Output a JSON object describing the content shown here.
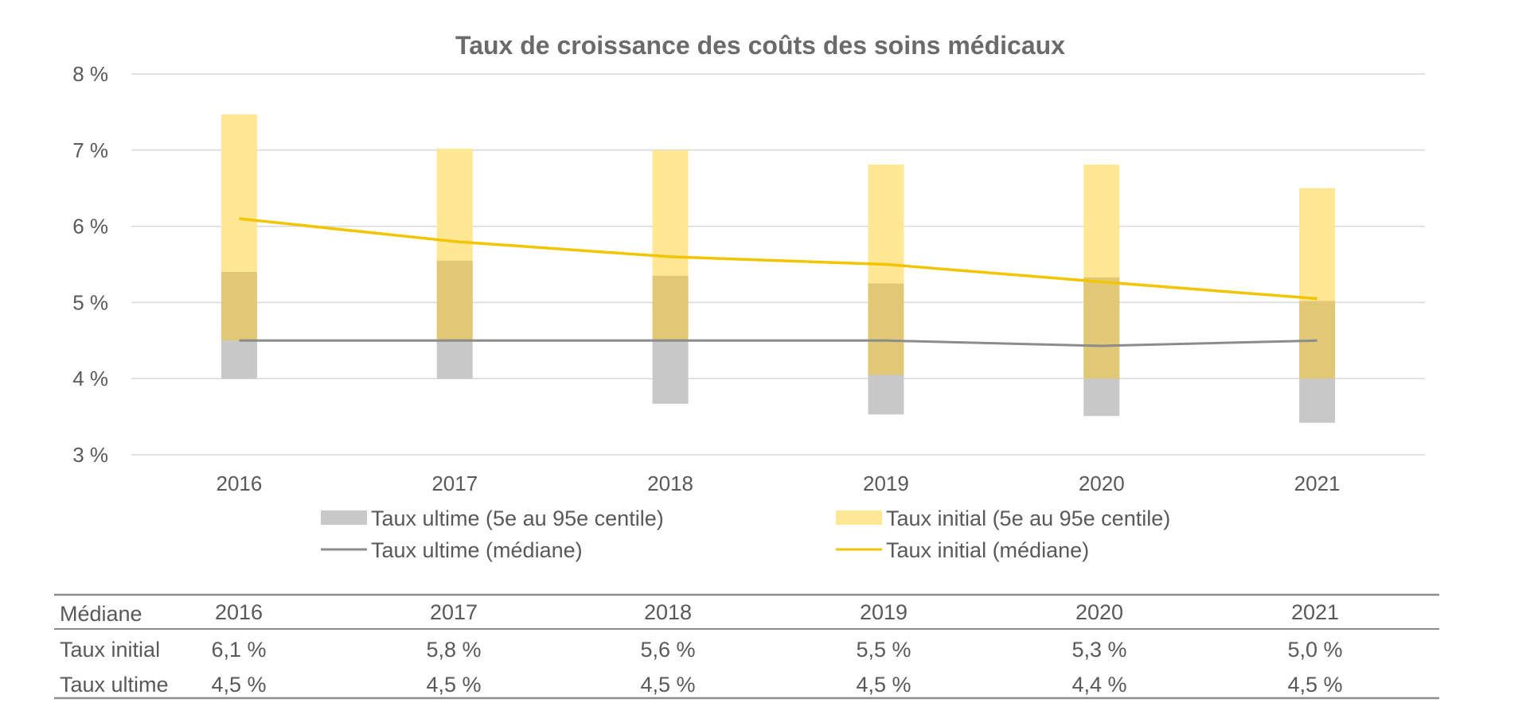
{
  "chart_data": {
    "type": "bar",
    "title": "Taux de croissance des coûts des soins médicaux",
    "categories": [
      "2016",
      "2017",
      "2018",
      "2019",
      "2020",
      "2021"
    ],
    "y_ticks": [
      "8 %",
      "7 %",
      "6 %",
      "5 %",
      "4 %",
      "3 %"
    ],
    "ylim": [
      3,
      8
    ],
    "grid": true,
    "legend_placement": "bottom",
    "series": [
      {
        "name": "Taux ultime (5e au 95e centile)",
        "kind": "range-bar",
        "color": "#c8c8c8",
        "low": [
          4.0,
          4.0,
          3.67,
          3.53,
          3.51,
          3.42
        ],
        "high": [
          4.5,
          4.5,
          4.5,
          4.05,
          4.0,
          4.0
        ]
      },
      {
        "name": "Taux initial (5e au 95e centile)",
        "kind": "range-bar",
        "color": "#ffe794",
        "low": [
          4.5,
          4.5,
          4.5,
          4.05,
          4.0,
          4.0
        ],
        "high": [
          7.47,
          7.02,
          7.0,
          6.81,
          6.81,
          6.5
        ]
      },
      {
        "name": "Taux ultime (médiane)",
        "kind": "line",
        "color": "#8c8c8c",
        "values": [
          4.5,
          4.5,
          4.5,
          4.5,
          4.43,
          4.5
        ]
      },
      {
        "name": "Taux initial (médiane)",
        "kind": "line",
        "color": "#f2c500",
        "values": [
          6.1,
          5.8,
          5.6,
          5.5,
          5.27,
          5.05
        ]
      }
    ],
    "overlap": {
      "color": "#e0c877",
      "low": [
        4.5,
        4.5,
        4.5,
        4.05,
        4.0,
        4.0
      ],
      "high": [
        5.4,
        5.55,
        5.35,
        5.25,
        5.33,
        5.02
      ]
    },
    "table": {
      "header_label": "Médiane",
      "rows": [
        {
          "label": "Taux initial",
          "values": [
            "6,1 %",
            "5,8 %",
            "5,6 %",
            "5,5 %",
            "5,3 %",
            "5,0 %"
          ]
        },
        {
          "label": "Taux ultime",
          "values": [
            "4,5 %",
            "4,5 %",
            "4,5 %",
            "4,5 %",
            "4,4 %",
            "4,5 %"
          ]
        }
      ]
    }
  }
}
